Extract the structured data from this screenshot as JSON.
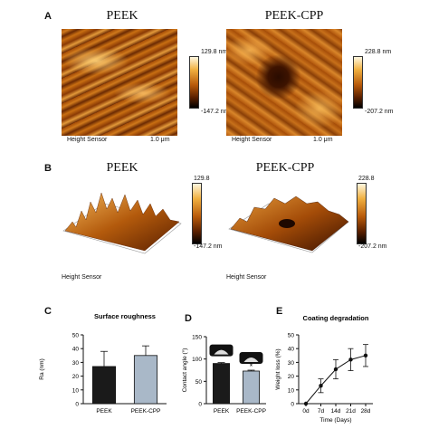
{
  "panelA": {
    "label": "A",
    "left": {
      "title": "PEEK",
      "caption": "Height Sensor",
      "scale": "1.0 μm",
      "max": "129.8 nm",
      "min": "-147.2 nm"
    },
    "right": {
      "title": "PEEK-CPP",
      "caption": "Height Sensor",
      "scale": "1.0 μm",
      "max": "228.8 nm",
      "min": "-207.2 nm"
    }
  },
  "panelB": {
    "label": "B",
    "left": {
      "title": "PEEK",
      "caption": "Height Sensor",
      "max": "129.8",
      "min": "-147.2 nm"
    },
    "right": {
      "title": "PEEK-CPP",
      "caption": "Height Sensor",
      "max": "228.8",
      "min": "-207.2 nm"
    }
  },
  "chart_data": [
    {
      "panel": "C",
      "type": "bar",
      "title": "Surface roughness",
      "ylabel": "Ra (nm)",
      "categories": [
        "PEEK",
        "PEEK-CPP"
      ],
      "values": [
        27,
        35
      ],
      "errors": [
        11,
        7
      ],
      "colors": [
        "#1a1a1a",
        "#a9b8c8"
      ],
      "ylim": [
        0,
        50
      ],
      "yticks": [
        0,
        10,
        20,
        30,
        40,
        50
      ]
    },
    {
      "panel": "D",
      "type": "bar",
      "ylabel": "Contact angle (°)",
      "categories": [
        "PEEK",
        "PEEK-CPP"
      ],
      "values": [
        90,
        73
      ],
      "errors": [
        2,
        2
      ],
      "colors": [
        "#1a1a1a",
        "#a9b8c8"
      ],
      "annotation": "*",
      "ylim": [
        0,
        150
      ],
      "yticks": [
        0,
        50,
        100,
        150
      ]
    },
    {
      "panel": "E",
      "type": "line",
      "title": "Coating degradation",
      "xlabel": "Time (Days)",
      "ylabel": "Weight loss (%)",
      "x": [
        "0d",
        "7d",
        "14d",
        "21d",
        "28d"
      ],
      "values": [
        0,
        13,
        25,
        32,
        35
      ],
      "errors": [
        0,
        5,
        7,
        8,
        8
      ],
      "ylim": [
        0,
        50
      ],
      "yticks": [
        0,
        10,
        20,
        30,
        40,
        50
      ]
    }
  ]
}
